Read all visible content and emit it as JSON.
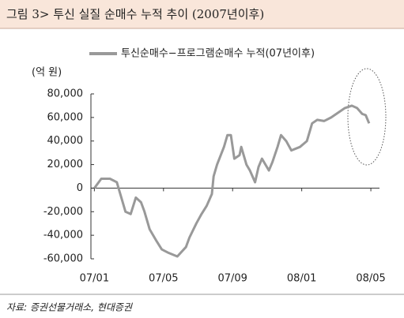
{
  "chart_data": {
    "type": "line",
    "title": "그림 3> 투신 실질 순매수 누적 추이 (2007년이후)",
    "y_label": "(억 원)",
    "source": "자료: 증권선물거래소, 현대증권",
    "x": [
      0,
      0.4,
      0.9,
      1.3,
      1.5,
      1.8,
      2.1,
      2.4,
      2.7,
      2.9,
      3.2,
      3.6,
      3.9,
      4.3,
      4.8,
      5.3,
      5.5,
      5.9,
      6.2,
      6.5,
      6.8,
      6.9,
      7.1,
      7.5,
      7.7,
      7.9,
      8.1,
      8.4,
      8.5,
      8.8,
      9.0,
      9.3,
      9.5,
      9.7,
      10.1,
      10.3,
      10.6,
      10.8,
      11.1,
      11.4,
      11.9,
      12.3,
      12.6,
      12.9,
      13.3,
      13.7,
      14.2,
      14.5,
      14.9,
      15.2,
      15.5,
      15.7,
      15.9
    ],
    "series": [
      {
        "name": "투신순매수−프로그램순매수 누적(07년이후)",
        "color": "#999999",
        "values": [
          0,
          8000,
          8000,
          5000,
          -5000,
          -20000,
          -22000,
          -8000,
          -12000,
          -20000,
          -35000,
          -45000,
          -52000,
          -55000,
          -58000,
          -50000,
          -42000,
          -30000,
          -22000,
          -15000,
          -5000,
          10000,
          20000,
          35000,
          45000,
          45000,
          25000,
          28000,
          35000,
          20000,
          15000,
          5000,
          18000,
          25000,
          15000,
          22000,
          35000,
          45000,
          40000,
          32000,
          35000,
          40000,
          55000,
          58000,
          57000,
          60000,
          65000,
          68000,
          70000,
          68000,
          63000,
          62000,
          55000
        ]
      }
    ],
    "xlim": [
      -0.2,
      16.5
    ],
    "xticks": [
      {
        "value": 0,
        "label": "07/01"
      },
      {
        "value": 4,
        "label": "07/05"
      },
      {
        "value": 8,
        "label": "07/09"
      },
      {
        "value": 12,
        "label": "08/01"
      },
      {
        "value": 16,
        "label": "08/05"
      }
    ],
    "ylim": [
      -60000,
      80000
    ],
    "yticks": [
      {
        "value": -60000,
        "label": "-60,000"
      },
      {
        "value": -40000,
        "label": "-40,000"
      },
      {
        "value": -20000,
        "label": "-20,000"
      },
      0,
      {
        "value": 20000,
        "label": "20,000"
      },
      {
        "value": 40000,
        "label": "40,000"
      },
      {
        "value": 60000,
        "label": "60,000"
      },
      {
        "value": 80000,
        "label": "80,000"
      }
    ],
    "grid": false
  }
}
